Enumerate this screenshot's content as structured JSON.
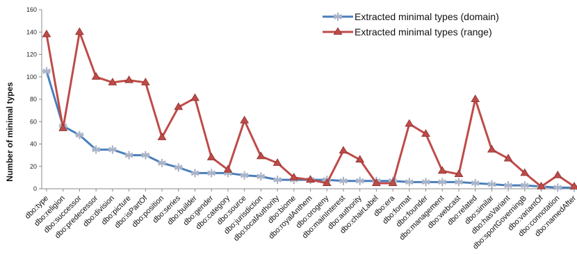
{
  "chart_data": {
    "type": "line",
    "title": "",
    "xlabel": "",
    "ylabel": "Number of minimal types",
    "ylim": [
      0,
      160
    ],
    "yticks": [
      0,
      20,
      40,
      60,
      80,
      100,
      120,
      140,
      160
    ],
    "grid": false,
    "legend_position": "top-right",
    "categories": [
      "dbo:type",
      "dbo:religion",
      "dbo:successor",
      "dbo:predecessor",
      "dbo:division",
      "dbo:picture",
      "dbo:isPartOf",
      "dbo:position",
      "dbo:series",
      "dbo:builder",
      "dbo:gender",
      "dbo:category",
      "dbo:source",
      "dbo:jurisdiction",
      "dbo:localAuthority",
      "dbo:biome",
      "dbo:royalAnthem",
      "dbo:orogeny",
      "dbo:mainInterest",
      "dbo:authority",
      "dbo:chairLabel",
      "dbo:era",
      "dbo:format",
      "dbo:founder",
      "dbo:management",
      "dbo:webcast",
      "dbo:related",
      "dbo:similar",
      "dbo:hasVariant",
      "dbo:sportGoverningB",
      "dbo:variantOf",
      "dbo:connotation",
      "dbo:namedAfter"
    ],
    "series": [
      {
        "name": "Extracted minimal types (domain)",
        "color": "#4a7ebb",
        "marker": "star",
        "values": [
          105,
          56,
          48,
          35,
          35,
          30,
          30,
          23,
          19,
          14,
          14,
          14,
          12,
          11,
          8,
          8,
          8,
          8,
          7,
          7,
          7,
          7,
          6,
          6,
          6,
          6,
          5,
          4,
          3,
          3,
          2,
          1,
          1
        ]
      },
      {
        "name": "Extracted minimal types (range)",
        "color": "#be4b48",
        "marker": "triangle",
        "values": [
          138,
          54,
          140,
          100,
          95,
          97,
          95,
          46,
          73,
          81,
          28,
          17,
          61,
          29,
          23,
          10,
          8,
          5,
          34,
          26,
          5,
          5,
          58,
          49,
          16,
          13,
          80,
          35,
          27,
          14,
          2,
          12,
          2
        ]
      }
    ]
  }
}
